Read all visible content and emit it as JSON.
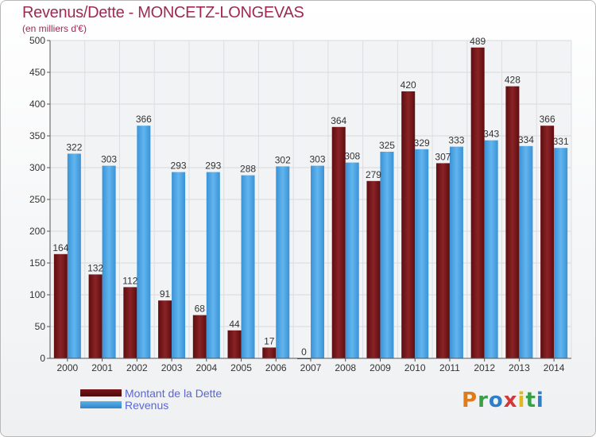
{
  "header": {
    "title": "Revenus/Dette - MONCETZ-LONGEVAS",
    "subtitle": "(en milliers d'€)"
  },
  "logo": {
    "text": "Proxiti",
    "colors": [
      "#e07b1c",
      "#3aa047",
      "#2f7fc8",
      "#d3373a",
      "#e0b81c",
      "#3aa047",
      "#2f7fc8"
    ]
  },
  "colors": {
    "debt": "#7a1518",
    "revenue": "#4aa3e3",
    "title": "#9c2a55",
    "legend_text": "#5a66d6"
  },
  "chart_data": {
    "type": "bar",
    "categories": [
      "2000",
      "2001",
      "2002",
      "2003",
      "2004",
      "2005",
      "2006",
      "2007",
      "2008",
      "2009",
      "2010",
      "2011",
      "2012",
      "2013",
      "2014"
    ],
    "series": [
      {
        "name": "Montant de la Dette",
        "values": [
          164,
          132,
          112,
          91,
          68,
          44,
          17,
          0,
          364,
          279,
          420,
          307,
          489,
          428,
          366
        ]
      },
      {
        "name": "Revenus",
        "values": [
          322,
          303,
          366,
          293,
          293,
          288,
          302,
          303,
          308,
          325,
          329,
          333,
          343,
          334,
          331
        ]
      }
    ],
    "ylim": [
      0,
      500
    ],
    "yticks": [
      0,
      50,
      100,
      150,
      200,
      250,
      300,
      350,
      400,
      450,
      500
    ],
    "grid": true,
    "legend": "bottom-left"
  }
}
